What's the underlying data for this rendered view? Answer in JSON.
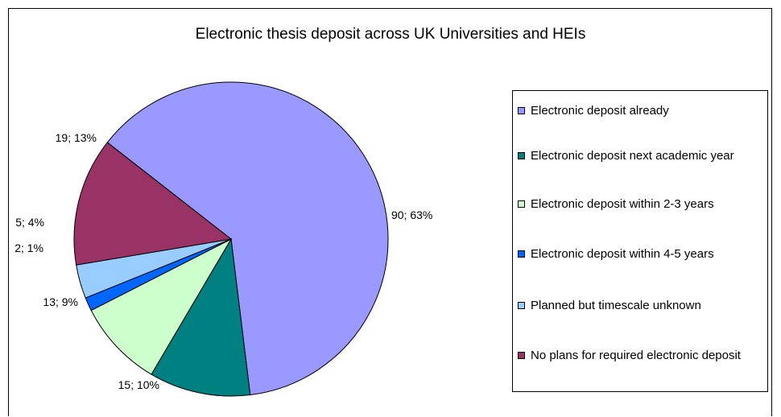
{
  "chart_data": {
    "type": "pie",
    "title": "Electronic thesis deposit across UK Universities and HEIs",
    "legend_position": "right",
    "slices": [
      {
        "name": "Electronic deposit already",
        "value": 90,
        "percent": 63,
        "label": "90; 63%",
        "color": "#9999ff"
      },
      {
        "name": "Electronic deposit next academic year",
        "value": 15,
        "percent": 10,
        "label": "15; 10%",
        "color": "#008080"
      },
      {
        "name": "Electronic deposit within 2-3 years",
        "value": 13,
        "percent": 9,
        "label": "13; 9%",
        "color": "#ccffcc"
      },
      {
        "name": "Electronic deposit within 4-5 years",
        "value": 2,
        "percent": 1,
        "label": "2; 1%",
        "color": "#0066ff"
      },
      {
        "name": "Planned but timescale unknown",
        "value": 5,
        "percent": 4,
        "label": "5; 4%",
        "color": "#99ccff"
      },
      {
        "name": "No plans for required electronic deposit",
        "value": 19,
        "percent": 13,
        "label": "19; 13%",
        "color": "#993366"
      }
    ]
  }
}
